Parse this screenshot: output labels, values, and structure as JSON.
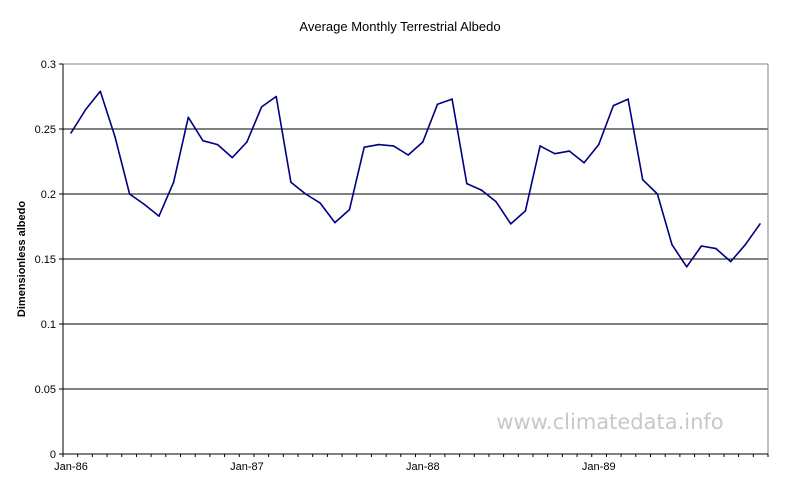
{
  "chart_data": {
    "type": "line",
    "title": "Average Monthly Terrestrial Albedo",
    "xlabel": "",
    "ylabel": "Dimensionless albedo",
    "ylim": [
      0,
      0.3
    ],
    "yticks": [
      "0",
      "0.05",
      "0.1",
      "0.15",
      "0.2",
      "0.25",
      "0.3"
    ],
    "xtick_labels": [
      "Jan-86",
      "Jan-87",
      "Jan-88",
      "Jan-89"
    ],
    "grid": "horizontal",
    "legend": "none",
    "line_color": "#000080",
    "watermark": "www.climatedata.info",
    "series": [
      {
        "x": [
          "Jan-86",
          "Feb-86",
          "Mar-86",
          "Apr-86",
          "May-86",
          "Jun-86",
          "Jul-86",
          "Aug-86",
          "Sep-86",
          "Oct-86",
          "Nov-86",
          "Dec-86",
          "Jan-87",
          "Feb-87",
          "Mar-87",
          "Apr-87",
          "May-87",
          "Jun-87",
          "Jul-87",
          "Aug-87",
          "Sep-87",
          "Oct-87",
          "Nov-87",
          "Dec-87",
          "Jan-88",
          "Feb-88",
          "Mar-88",
          "Apr-88",
          "May-88",
          "Jun-88",
          "Jul-88",
          "Aug-88",
          "Sep-88",
          "Oct-88",
          "Nov-88",
          "Dec-88",
          "Jan-89",
          "Feb-89",
          "Mar-89",
          "Apr-89",
          "May-89",
          "Jun-89",
          "Jul-89",
          "Aug-89",
          "Sep-89",
          "Oct-89",
          "Nov-89",
          "Dec-89"
        ],
        "values": [
          0.247,
          0.265,
          0.279,
          0.244,
          0.2,
          0.192,
          0.183,
          0.209,
          0.259,
          0.241,
          0.238,
          0.228,
          0.24,
          0.267,
          0.275,
          0.209,
          0.2,
          0.193,
          0.178,
          0.188,
          0.236,
          0.238,
          0.237,
          0.23,
          0.24,
          0.269,
          0.273,
          0.208,
          0.203,
          0.194,
          0.177,
          0.187,
          0.237,
          0.231,
          0.233,
          0.224,
          0.238,
          0.268,
          0.273,
          0.211,
          0.2,
          0.161,
          0.144,
          0.16,
          0.158,
          0.148,
          0.161,
          0.177
        ]
      }
    ]
  }
}
